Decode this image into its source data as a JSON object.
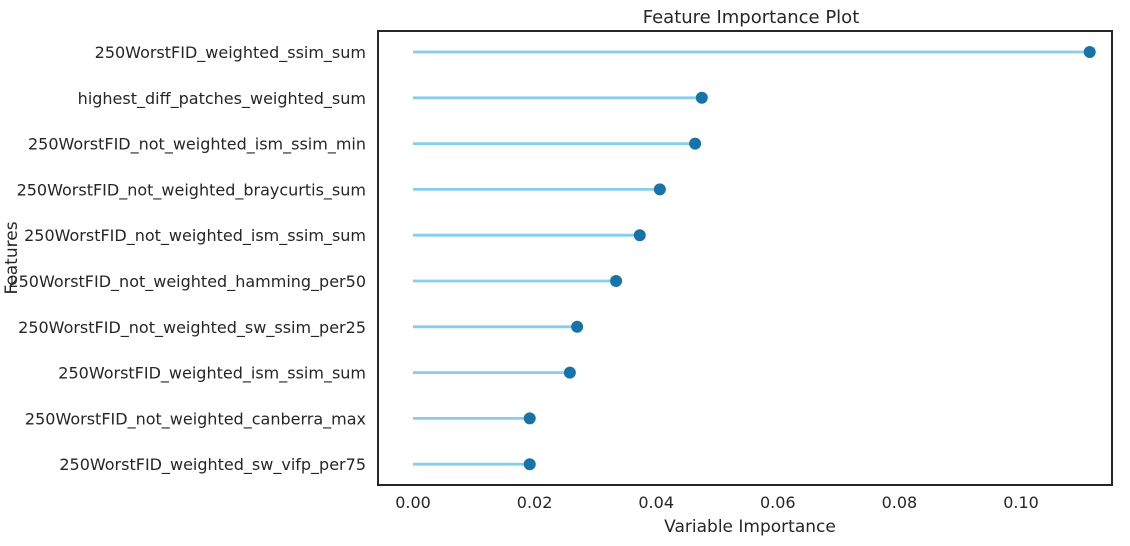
{
  "chart_data": {
    "type": "lollipop",
    "title": "Feature Importance Plot",
    "xlabel": "Variable Importance",
    "ylabel": "Features",
    "xlim": [
      -0.0058,
      0.1125
    ],
    "x_ticks": [
      0.0,
      0.02,
      0.04,
      0.06,
      0.08,
      0.1
    ],
    "x_tick_labels": [
      "0.00",
      "0.02",
      "0.04",
      "0.06",
      "0.08",
      "0.10"
    ],
    "grid": false,
    "legend": "none",
    "categories": [
      "250WorstFID_weighted_ssim_sum",
      "highest_diff_patches_weighted_sum",
      "250WorstFID_not_weighted_ism_ssim_min",
      "250WorstFID_not_weighted_braycurtis_sum",
      "250WorstFID_not_weighted_ism_ssim_sum",
      "250WorstFID_not_weighted_hamming_per50",
      "250WorstFID_not_weighted_sw_ssim_per25",
      "250WorstFID_weighted_ism_ssim_sum",
      "250WorstFID_not_weighted_canberra_max",
      "250WorstFID_weighted_sw_vifp_per75"
    ],
    "values": [
      0.1113,
      0.0475,
      0.0464,
      0.0406,
      0.0373,
      0.0334,
      0.027,
      0.0258,
      0.0192,
      0.0192
    ],
    "colors": {
      "stem": "#87CEEB",
      "marker": "#1874A8",
      "axes": "#262626",
      "text": "#262626"
    }
  }
}
